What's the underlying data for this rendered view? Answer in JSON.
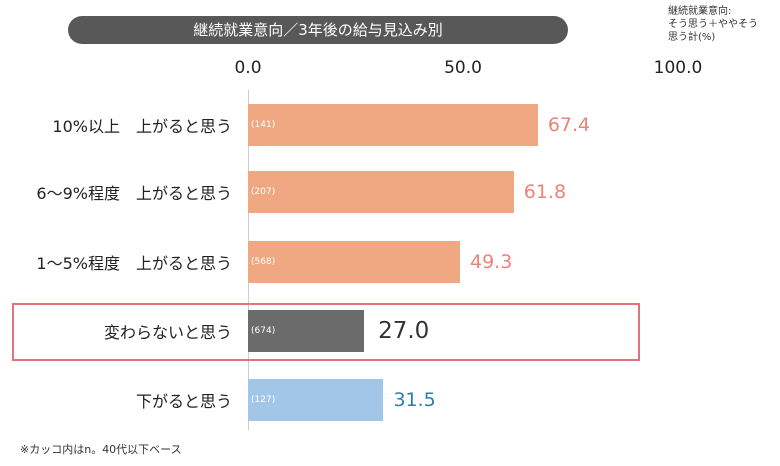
{
  "chart_data": {
    "type": "bar",
    "orientation": "horizontal",
    "title": "継続就業意向／3年後の給与見込み別",
    "note": "継続就業意向:\nそう思う＋ややそう\n思う計(%)",
    "xlim": [
      0,
      100
    ],
    "ticks": [
      "0.0",
      "50.0",
      "100.0"
    ],
    "categories": [
      "10%以上　上がると思う",
      "6～9%程度　上がると思う",
      "1～5%程度　上がると思う",
      "変わらないと思う",
      "下がると思う"
    ],
    "values": [
      67.4,
      61.8,
      49.3,
      27.0,
      31.5
    ],
    "value_labels": [
      "67.4",
      "61.8",
      "49.3",
      "27.0",
      "31.5"
    ],
    "n": [
      "(141)",
      "(207)",
      "(568)",
      "(674)",
      "(127)"
    ],
    "colors": [
      "#f0a882",
      "#f0a882",
      "#f0a882",
      "#6b6b6b",
      "#a2c6e8"
    ],
    "label_colors": [
      "#e8857a",
      "#e8857a",
      "#e8857a",
      "#333333",
      "#2e7fa8"
    ],
    "highlighted": "変わらないと思う",
    "footnote": "※カッコ内はn。40代以下ベース"
  }
}
